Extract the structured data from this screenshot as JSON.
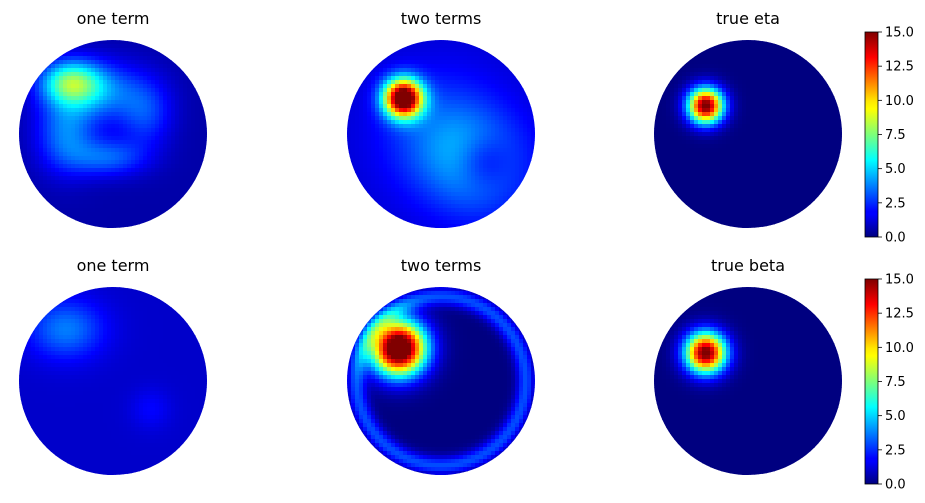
{
  "chart_data": [
    {
      "type": "heatmap",
      "title": "one term",
      "panel": "row1-col1",
      "blobs": [
        {
          "cx": -0.45,
          "cy": 0.55,
          "sx": 0.22,
          "sy": 0.16,
          "peak": 5.5
        },
        {
          "cx": -0.15,
          "cy": 0.45,
          "sx": 0.35,
          "sy": 0.22,
          "peak": 3.0
        },
        {
          "cx": -0.5,
          "cy": 0.0,
          "sx": 0.22,
          "sy": 0.28,
          "peak": 3.0
        },
        {
          "cx": -0.05,
          "cy": -0.25,
          "sx": 0.28,
          "sy": 0.14,
          "peak": 2.6
        },
        {
          "cx": 0.35,
          "cy": 0.2,
          "sx": 0.2,
          "sy": 0.25,
          "peak": 2.0
        }
      ],
      "base": 0.6
    },
    {
      "type": "heatmap",
      "title": "two terms",
      "panel": "row1-col2",
      "blobs": [
        {
          "cx": -0.4,
          "cy": 0.38,
          "sx": 0.14,
          "sy": 0.14,
          "peak": 16.0
        },
        {
          "cx": 0.4,
          "cy": -0.35,
          "sx": 0.38,
          "sy": 0.38,
          "peak": 2.5
        },
        {
          "cx": 0.0,
          "cy": 0.0,
          "sx": 0.45,
          "sy": 0.45,
          "peak": 2.0
        }
      ],
      "ring_dip": {
        "cx": 0.45,
        "cy": -0.3,
        "r": 0.2,
        "depth": 2.0
      },
      "base": 1.2
    },
    {
      "type": "heatmap",
      "title": "true eta",
      "panel": "row1-col3",
      "blobs": [
        {
          "cx": -0.45,
          "cy": 0.3,
          "sx": 0.13,
          "sy": 0.13,
          "peak": 15.5
        }
      ],
      "base": 0.0
    },
    {
      "type": "heatmap",
      "title": "one term",
      "panel": "row2-col1",
      "blobs": [
        {
          "cx": -0.5,
          "cy": 0.55,
          "sx": 0.28,
          "sy": 0.22,
          "peak": 2.6
        },
        {
          "cx": 0.4,
          "cy": -0.3,
          "sx": 0.15,
          "sy": 0.15,
          "peak": 0.8
        }
      ],
      "base": 1.1
    },
    {
      "type": "heatmap",
      "title": "two terms",
      "panel": "row2-col2",
      "blobs": [
        {
          "cx": -0.45,
          "cy": 0.35,
          "sx": 0.2,
          "sy": 0.2,
          "peak": 18.0
        }
      ],
      "rim": {
        "r": 0.9,
        "width": 0.07,
        "peak": 3.0
      },
      "base": 0.0
    },
    {
      "type": "heatmap",
      "title": "true beta",
      "panel": "row2-col3",
      "blobs": [
        {
          "cx": -0.45,
          "cy": 0.3,
          "sx": 0.15,
          "sy": 0.15,
          "peak": 15.5
        }
      ],
      "base": 0.0
    }
  ],
  "colorbar": {
    "colormap": "jet",
    "range": [
      0.0,
      15.0
    ],
    "ticks": [
      "0.0",
      "2.5",
      "5.0",
      "7.5",
      "10.0",
      "12.5",
      "15.0"
    ],
    "tick_values": [
      0,
      2.5,
      5,
      7.5,
      10,
      12.5,
      15
    ]
  }
}
